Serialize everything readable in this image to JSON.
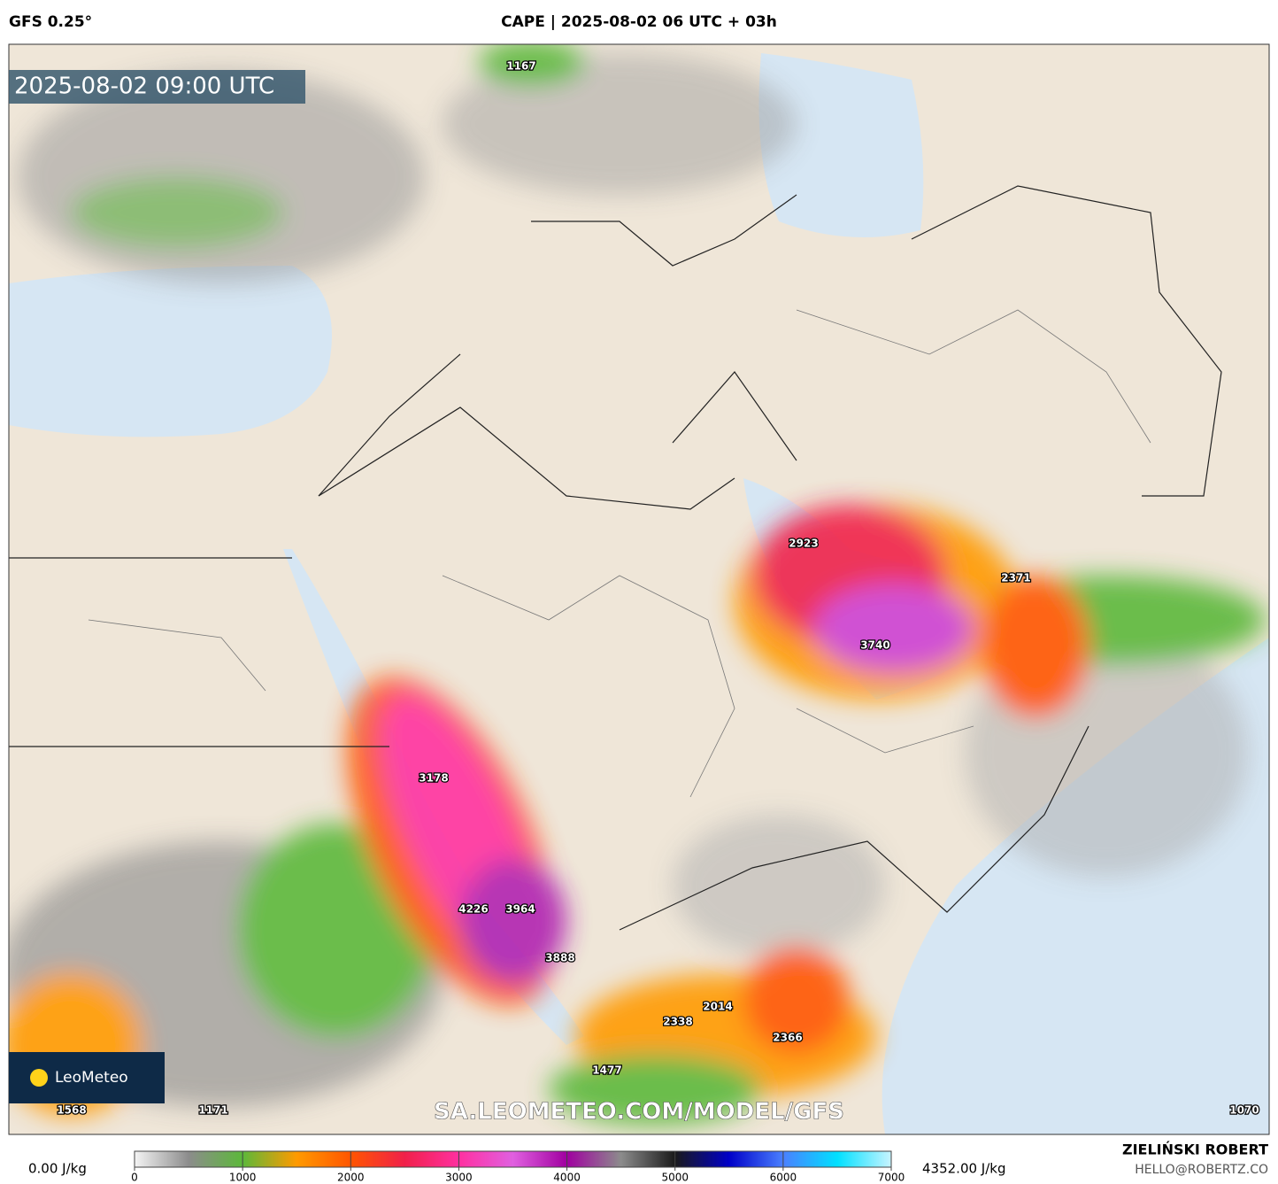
{
  "header": {
    "model": "GFS 0.25°",
    "title": "CAPE | 2025-08-02 06 UTC + 03h"
  },
  "timestamp": "2025-08-02 09:00 UTC",
  "watermark": "SA.LEOMETEO.COM/MODEL/GFS",
  "logo": "LeoMeteo",
  "map_labels": [
    1167,
    2923,
    2371,
    3740,
    3178,
    4226,
    3964,
    3888,
    2014,
    2338,
    2366,
    1477,
    1568,
    1171,
    1070
  ],
  "colorbar": {
    "min_label": "0.00 J/kg",
    "max_label": "4352.00 J/kg",
    "lim": [
      0,
      7000
    ],
    "ticks": [
      0,
      1000,
      2000,
      3000,
      4000,
      5000,
      6000,
      7000
    ],
    "colors": [
      "#f4f4f4",
      "#8c8c8c",
      "#5cb83a",
      "#ff9a00",
      "#ff5500",
      "#f0204a",
      "#ff30a0",
      "#e060e0",
      "#a000a0",
      "#8c8c8c",
      "#1a1a1a",
      "#0000c8",
      "#4a80ff",
      "#00e0ff",
      "#c8f4ff"
    ]
  },
  "credits": {
    "author": "ZIELIŃSKI ROBERT",
    "email": "HELLO@ROBERTZ.CO"
  }
}
